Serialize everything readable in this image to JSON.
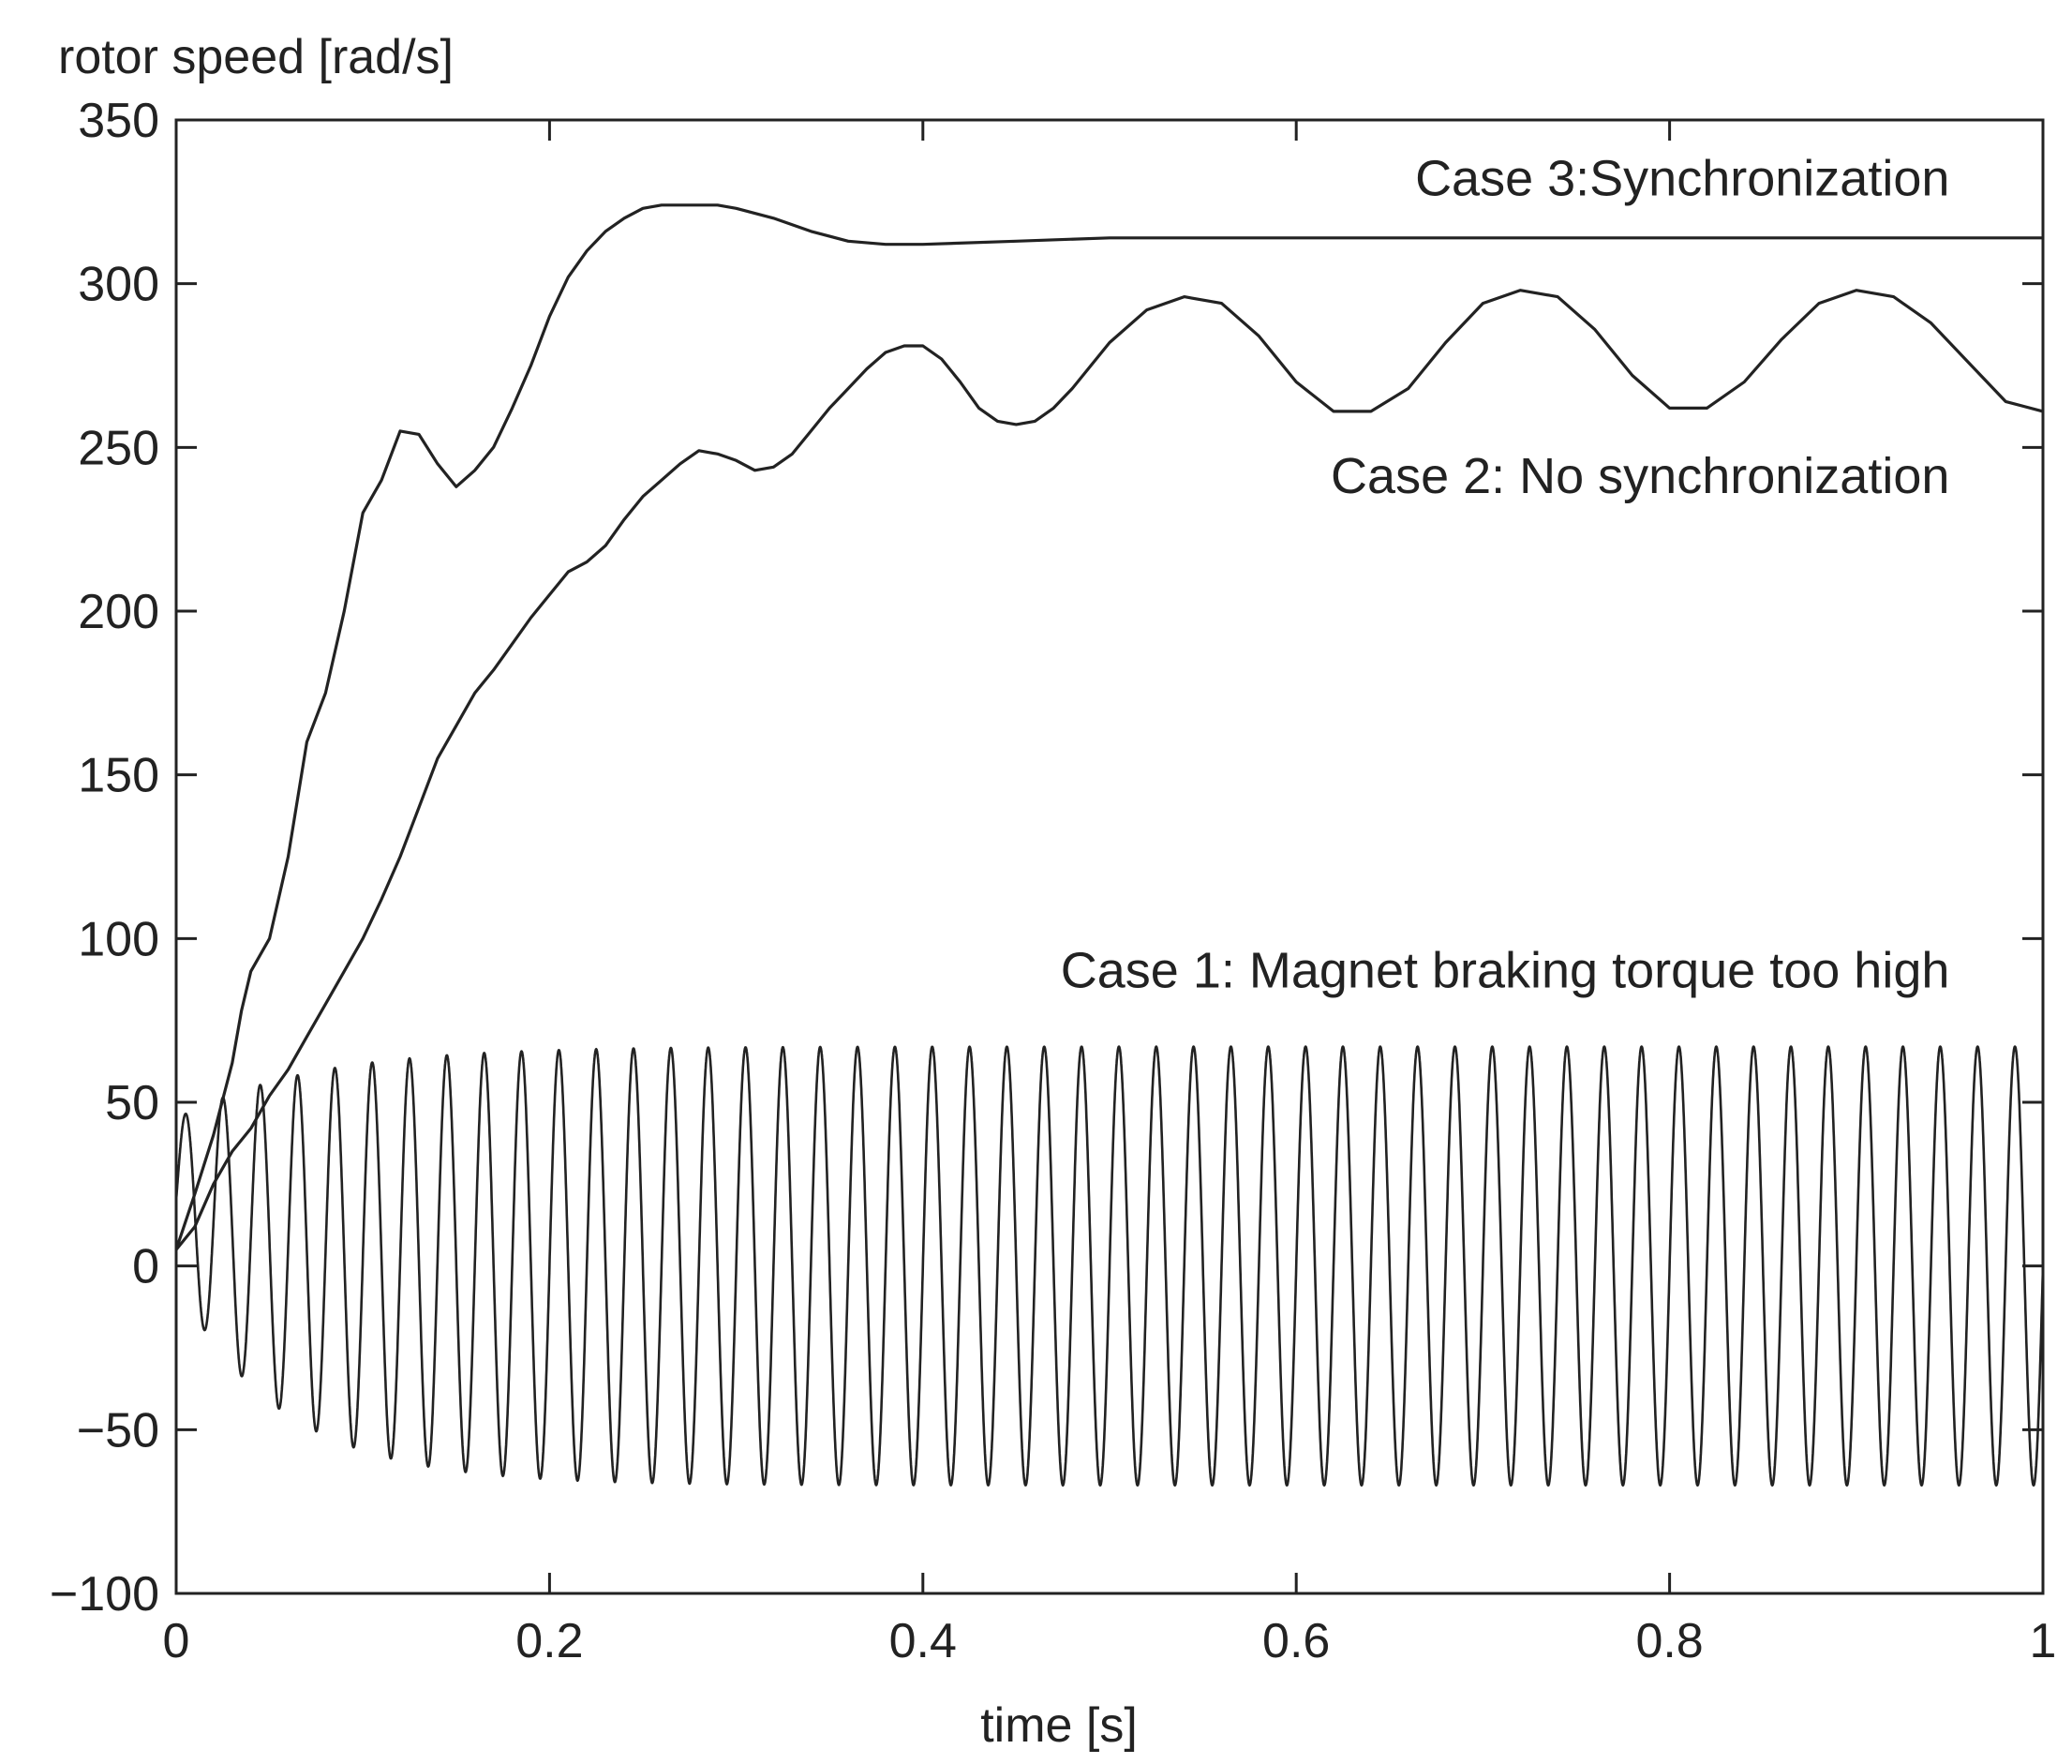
{
  "chart_data": {
    "type": "line",
    "title": "",
    "xlabel": "time [s]",
    "ylabel": "rotor speed [rad/s]",
    "xlim": [
      0,
      1
    ],
    "ylim": [
      -100,
      350
    ],
    "xticks": [
      0,
      0.2,
      0.4,
      0.6,
      0.8,
      1
    ],
    "xtick_labels": [
      "0",
      "0.2",
      "0.4",
      "0.6",
      "0.8",
      "1"
    ],
    "yticks": [
      -100,
      -50,
      0,
      50,
      100,
      150,
      200,
      250,
      300,
      350
    ],
    "ytick_labels": [
      "−100",
      "−50",
      "0",
      "50",
      "100",
      "150",
      "200",
      "250",
      "300",
      "350"
    ],
    "grid": false,
    "line_color": "#222222",
    "annotations": [
      {
        "text": "Case 3:Synchronization",
        "x": 0.95,
        "y": 327
      },
      {
        "text": "Case 2: No synchronization",
        "x": 0.95,
        "y": 236
      },
      {
        "text": "Case 1: Magnet braking torque too high",
        "x": 0.95,
        "y": 85
      }
    ],
    "series": [
      {
        "name": "Case 3: Synchronization",
        "x": [
          0,
          0.01,
          0.02,
          0.03,
          0.035,
          0.04,
          0.05,
          0.06,
          0.07,
          0.08,
          0.09,
          0.1,
          0.11,
          0.12,
          0.13,
          0.14,
          0.15,
          0.16,
          0.17,
          0.18,
          0.19,
          0.2,
          0.21,
          0.22,
          0.23,
          0.24,
          0.25,
          0.26,
          0.27,
          0.28,
          0.29,
          0.3,
          0.32,
          0.34,
          0.36,
          0.38,
          0.4,
          0.45,
          0.5,
          0.6,
          0.7,
          0.8,
          0.9,
          1.0
        ],
        "y": [
          5,
          22,
          40,
          62,
          78,
          90,
          100,
          125,
          160,
          175,
          200,
          230,
          240,
          255,
          254,
          245,
          238,
          243,
          250,
          262,
          275,
          290,
          302,
          310,
          316,
          320,
          323,
          324,
          324,
          324,
          324,
          323,
          320,
          316,
          313,
          312,
          312,
          313,
          314,
          314,
          314,
          314,
          314,
          314
        ]
      },
      {
        "name": "Case 2: No synchronization",
        "x": [
          0,
          0.01,
          0.02,
          0.03,
          0.04,
          0.05,
          0.06,
          0.07,
          0.08,
          0.09,
          0.1,
          0.11,
          0.12,
          0.13,
          0.14,
          0.15,
          0.16,
          0.17,
          0.18,
          0.19,
          0.2,
          0.21,
          0.22,
          0.23,
          0.24,
          0.25,
          0.26,
          0.27,
          0.28,
          0.29,
          0.3,
          0.31,
          0.32,
          0.33,
          0.34,
          0.35,
          0.36,
          0.37,
          0.38,
          0.39,
          0.4,
          0.41,
          0.42,
          0.43,
          0.44,
          0.45,
          0.46,
          0.47,
          0.48,
          0.49,
          0.5,
          0.52,
          0.54,
          0.56,
          0.58,
          0.6,
          0.62,
          0.64,
          0.66,
          0.68,
          0.7,
          0.72,
          0.74,
          0.76,
          0.78,
          0.8,
          0.82,
          0.84,
          0.86,
          0.88,
          0.9,
          0.92,
          0.94,
          0.96,
          0.98,
          1.0
        ],
        "y": [
          5,
          12,
          25,
          35,
          42,
          52,
          60,
          70,
          80,
          90,
          100,
          112,
          125,
          140,
          155,
          165,
          175,
          182,
          190,
          198,
          205,
          212,
          215,
          220,
          228,
          235,
          240,
          245,
          249,
          248,
          246,
          243,
          244,
          248,
          255,
          262,
          268,
          274,
          279,
          281,
          281,
          277,
          270,
          262,
          258,
          257,
          258,
          262,
          268,
          275,
          282,
          292,
          296,
          294,
          284,
          270,
          261,
          261,
          268,
          282,
          294,
          298,
          296,
          286,
          272,
          262,
          262,
          270,
          283,
          294,
          298,
          296,
          288,
          276,
          264,
          261
        ]
      },
      {
        "name": "Case 1: Magnet braking torque too high",
        "function": "oscillation",
        "frequency_hz": 50,
        "amplitude_start": 25,
        "amplitude_steady": 67,
        "offset_start": 20,
        "offset_steady": 0,
        "x_range": [
          0,
          1
        ]
      }
    ]
  }
}
